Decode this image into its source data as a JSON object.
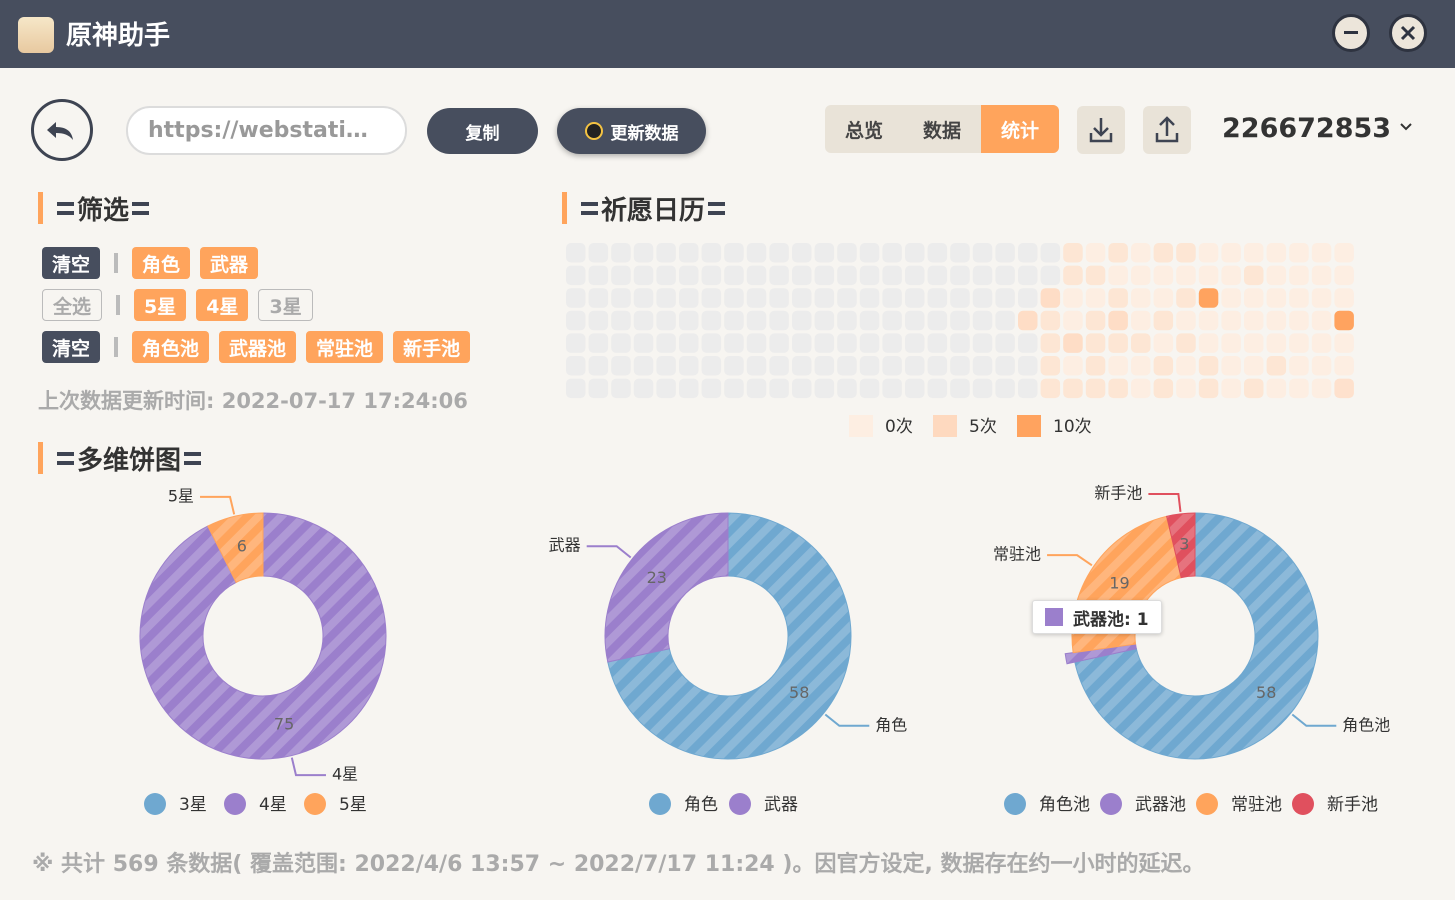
{
  "window": {
    "title": "原神助手"
  },
  "toolbar": {
    "url": "https://webstati…",
    "copy": "复制",
    "refresh": "更新数据",
    "tabs": [
      "总览",
      "数据",
      "统计"
    ],
    "active_tab": "统计",
    "uid": "226672853"
  },
  "headings": {
    "filter": "筛选",
    "calendar": "祈愿日历",
    "pies": "多维饼图"
  },
  "filter": {
    "rows": [
      [
        {
          "text": "清空",
          "state": "action"
        },
        {
          "text": "角色",
          "state": "on"
        },
        {
          "text": "武器",
          "state": "on"
        }
      ],
      [
        {
          "text": "全选",
          "state": "off"
        },
        {
          "text": "5星",
          "state": "on"
        },
        {
          "text": "4星",
          "state": "on"
        },
        {
          "text": "3星",
          "state": "off"
        }
      ],
      [
        {
          "text": "清空",
          "state": "action"
        },
        {
          "text": "角色池",
          "state": "on"
        },
        {
          "text": "武器池",
          "state": "on"
        },
        {
          "text": "常驻池",
          "state": "on"
        },
        {
          "text": "新手池",
          "state": "on"
        }
      ]
    ]
  },
  "last_update": "上次数据更新时间: 2022-07-17 17:24:06",
  "chart_data": [
    {
      "type": "heatmap",
      "empty_color": "#ececec",
      "values": [
        [
          null,
          null,
          null,
          null,
          null,
          null,
          null,
          null,
          null,
          null,
          null,
          null,
          null,
          null,
          null,
          null,
          null,
          null,
          null,
          null,
          null,
          null,
          2,
          0,
          2,
          0,
          2,
          2,
          0,
          0,
          0,
          0,
          0,
          0,
          0
        ],
        [
          null,
          null,
          null,
          null,
          null,
          null,
          null,
          null,
          null,
          null,
          null,
          null,
          null,
          null,
          null,
          null,
          null,
          null,
          null,
          null,
          null,
          null,
          2,
          2,
          0,
          0,
          0,
          0,
          0,
          0,
          2,
          0,
          0,
          0,
          0
        ],
        [
          null,
          null,
          null,
          null,
          null,
          null,
          null,
          null,
          null,
          null,
          null,
          null,
          null,
          null,
          null,
          null,
          null,
          null,
          null,
          null,
          null,
          4,
          0,
          0,
          2,
          0,
          0,
          2,
          10,
          0,
          0,
          0,
          0,
          0,
          0
        ],
        [
          null,
          null,
          null,
          null,
          null,
          null,
          null,
          null,
          null,
          null,
          null,
          null,
          null,
          null,
          null,
          null,
          null,
          null,
          null,
          null,
          4,
          2,
          0,
          2,
          4,
          0,
          2,
          0,
          0,
          0,
          0,
          0,
          0,
          0,
          10
        ],
        [
          null,
          null,
          null,
          null,
          null,
          null,
          null,
          null,
          null,
          null,
          null,
          null,
          null,
          null,
          null,
          null,
          null,
          null,
          null,
          null,
          null,
          2,
          4,
          2,
          2,
          2,
          0,
          2,
          0,
          0,
          0,
          0,
          0,
          0,
          0
        ],
        [
          null,
          null,
          null,
          null,
          null,
          null,
          null,
          null,
          null,
          null,
          null,
          null,
          null,
          null,
          null,
          null,
          null,
          null,
          null,
          null,
          null,
          2,
          0,
          2,
          0,
          0,
          2,
          0,
          2,
          0,
          0,
          2,
          0,
          0,
          0
        ],
        [
          null,
          null,
          null,
          null,
          null,
          null,
          null,
          null,
          null,
          null,
          null,
          null,
          null,
          null,
          null,
          null,
          null,
          null,
          null,
          null,
          null,
          2,
          2,
          2,
          2,
          0,
          2,
          0,
          2,
          0,
          2,
          0,
          0,
          0,
          3
        ]
      ],
      "legend": [
        {
          "value": 0,
          "label": "0次",
          "color": "#fdeee2"
        },
        {
          "value": 5,
          "label": "5次",
          "color": "#fed9bf"
        },
        {
          "value": 10,
          "label": "10次",
          "color": "#ffa35f"
        }
      ]
    },
    {
      "type": "pie",
      "categories": [
        "3星",
        "4星",
        "5星"
      ],
      "values": [
        null,
        75,
        6
      ],
      "colors": [
        "#6fa8d0",
        "#9b7fcc",
        "#ffa45c"
      ]
    },
    {
      "type": "pie",
      "categories": [
        "角色",
        "武器"
      ],
      "values": [
        58,
        23
      ],
      "colors": [
        "#6fa8d0",
        "#9b7fcc"
      ]
    },
    {
      "type": "pie",
      "categories": [
        "角色池",
        "武器池",
        "常驻池",
        "新手池"
      ],
      "values": [
        58,
        1,
        19,
        3
      ],
      "colors": [
        "#6fa8d0",
        "#9b7fcc",
        "#ffa45c",
        "#e0505e"
      ],
      "highlight": "武器池",
      "tooltip": "武器池: 1"
    }
  ],
  "footer": "※ 共计 569 条数据( 覆盖范围: 2022/4/6 13:57 ~ 2022/7/17 11:24 )。因官方设定, 数据存在约一小时的延迟。"
}
